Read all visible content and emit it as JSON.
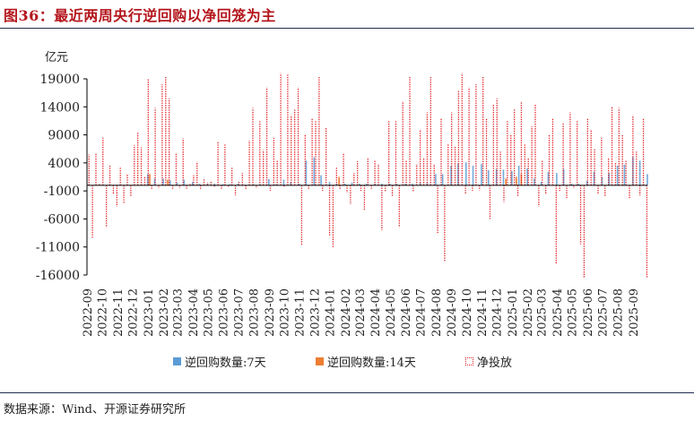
{
  "title": "图36：最近两周央行逆回购以净回笼为主",
  "source": "数据来源：Wind、开源证券研究所",
  "colors": {
    "title": "#b4161c",
    "series_7d": "#5b9bd5",
    "series_14d": "#ed7d31",
    "series_net": "#e0191f",
    "axis": "#000000"
  },
  "chart_data": {
    "type": "bar",
    "ylabel": "亿元",
    "xlabel": "",
    "ylim": [
      -16000,
      19000
    ],
    "yticks": [
      19000,
      14000,
      9000,
      4000,
      -1000,
      -6000,
      -11000,
      -16000
    ],
    "ytick_labels": [
      "19000",
      "14000",
      "9000",
      "4000",
      "-1000",
      "-6000",
      "-11000",
      "-16000"
    ],
    "categories": [
      "2022-09",
      "2022-10",
      "2022-11",
      "2022-12",
      "2023-01",
      "2023-02",
      "2023-03",
      "2023-04",
      "2023-05",
      "2023-06",
      "2023-07",
      "2023-08",
      "2023-09",
      "2023-10",
      "2023-11",
      "2023-12",
      "2024-01",
      "2024-02",
      "2024-03",
      "2024-04",
      "2024-05",
      "2024-06",
      "2024-07",
      "2024-08",
      "2024-09",
      "2024-10",
      "2024-11",
      "2024-12",
      "2025-01",
      "2025-02",
      "2025-03",
      "2025-04",
      "2025-05",
      "2025-06",
      "2025-07",
      "2025-08",
      "2025-09"
    ],
    "legend_position": "bottom",
    "grid": false,
    "series": [
      {
        "name": "逆回购数量:7天",
        "style": "bar",
        "color": "#5b9bd5",
        "x": [
          "2022-09-01",
          "2022-09-15",
          "2022-10-01",
          "2022-10-15",
          "2022-11-01",
          "2022-11-15",
          "2022-12-01",
          "2022-12-15",
          "2023-01-01",
          "2023-01-15",
          "2023-02-01",
          "2023-02-15",
          "2023-03-01",
          "2023-03-15",
          "2023-04-01",
          "2023-04-15",
          "2023-05-01",
          "2023-05-15",
          "2023-06-01",
          "2023-06-15",
          "2023-07-01",
          "2023-07-15",
          "2023-08-01",
          "2023-08-15",
          "2023-09-01",
          "2023-09-15",
          "2023-10-01",
          "2023-10-15",
          "2023-11-01",
          "2023-11-15",
          "2023-12-01",
          "2023-12-15",
          "2024-01-01",
          "2024-01-15",
          "2024-02-01",
          "2024-02-15",
          "2024-03-01",
          "2024-03-15",
          "2024-04-01",
          "2024-04-15",
          "2024-05-01",
          "2024-05-15",
          "2024-06-01",
          "2024-06-15",
          "2024-07-01",
          "2024-07-15",
          "2024-08-01",
          "2024-08-15",
          "2024-09-01",
          "2024-09-15",
          "2024-10-01",
          "2024-10-15",
          "2024-11-01",
          "2024-11-15",
          "2024-12-01",
          "2024-12-15",
          "2025-01-01",
          "2025-01-15",
          "2025-02-01",
          "2025-02-15",
          "2025-03-01",
          "2025-03-15",
          "2025-04-01",
          "2025-04-15",
          "2025-05-01",
          "2025-05-15",
          "2025-06-01",
          "2025-06-15",
          "2025-07-01",
          "2025-07-15",
          "2025-08-01",
          "2025-08-15",
          "2025-09-01",
          "2025-09-15",
          "2025-09-30"
        ],
        "values": [
          20,
          20,
          20,
          20,
          80,
          20,
          20,
          20,
          2000,
          1200,
          1200,
          900,
          500,
          1000,
          600,
          300,
          300,
          300,
          200,
          200,
          300,
          100,
          200,
          200,
          1100,
          200,
          1000,
          600,
          300,
          4400,
          5000,
          1800,
          600,
          300,
          300,
          500,
          300,
          300,
          300,
          300,
          300,
          300,
          300,
          300,
          400,
          400,
          2000,
          2000,
          3500,
          3900,
          4100,
          3500,
          3800,
          2700,
          2900,
          2800,
          2500,
          3500,
          3000,
          1200,
          600,
          2400,
          2200,
          2900,
          300,
          300,
          800,
          2400,
          1500,
          2200,
          3500,
          3700,
          5100,
          4400,
          2000
        ]
      },
      {
        "name": "逆回购数量:14天",
        "style": "bar",
        "color": "#ed7d31",
        "x": [
          "2023-01-05",
          "2023-02-10",
          "2024-01-20",
          "2024-12-20",
          "2025-01-10",
          "2025-01-20"
        ],
        "values": [
          2000,
          1000,
          1500,
          1200,
          1500,
          2000
        ]
      },
      {
        "name": "净投放",
        "style": "dotted-bar",
        "color": "#e0191f",
        "x": [
          "2022-09-05",
          "2022-09-12",
          "2022-09-19",
          "2022-09-26",
          "2022-10-03",
          "2022-10-10",
          "2022-10-17",
          "2022-10-24",
          "2022-10-31",
          "2022-11-07",
          "2022-11-14",
          "2022-11-21",
          "2022-11-28",
          "2022-12-05",
          "2022-12-12",
          "2022-12-19",
          "2022-12-26",
          "2023-01-02",
          "2023-01-09",
          "2023-01-16",
          "2023-01-23",
          "2023-01-30",
          "2023-02-06",
          "2023-02-13",
          "2023-02-20",
          "2023-02-27",
          "2023-03-06",
          "2023-03-13",
          "2023-03-20",
          "2023-03-27",
          "2023-04-03",
          "2023-04-10",
          "2023-04-17",
          "2023-04-24",
          "2023-05-01",
          "2023-05-08",
          "2023-05-15",
          "2023-05-22",
          "2023-05-29",
          "2023-06-05",
          "2023-06-12",
          "2023-06-19",
          "2023-06-26",
          "2023-07-03",
          "2023-07-10",
          "2023-07-17",
          "2023-07-24",
          "2023-07-31",
          "2023-08-07",
          "2023-08-14",
          "2023-08-21",
          "2023-08-28",
          "2023-09-04",
          "2023-09-11",
          "2023-09-18",
          "2023-09-25",
          "2023-10-02",
          "2023-10-09",
          "2023-10-16",
          "2023-10-23",
          "2023-10-30",
          "2023-11-06",
          "2023-11-13",
          "2023-11-20",
          "2023-11-27",
          "2023-12-04",
          "2023-12-11",
          "2023-12-18",
          "2023-12-25",
          "2024-01-01",
          "2024-01-08",
          "2024-01-15",
          "2024-01-22",
          "2024-01-29",
          "2024-02-05",
          "2024-02-12",
          "2024-02-19",
          "2024-02-26",
          "2024-03-04",
          "2024-03-11",
          "2024-03-18",
          "2024-03-25",
          "2024-04-01",
          "2024-04-08",
          "2024-04-15",
          "2024-04-22",
          "2024-04-29",
          "2024-05-06",
          "2024-05-13",
          "2024-05-20",
          "2024-05-27",
          "2024-06-03",
          "2024-06-10",
          "2024-06-17",
          "2024-06-24",
          "2024-07-01",
          "2024-07-08",
          "2024-07-15",
          "2024-07-22",
          "2024-07-29",
          "2024-08-05",
          "2024-08-12",
          "2024-08-19",
          "2024-08-26",
          "2024-09-02",
          "2024-09-09",
          "2024-09-16",
          "2024-09-23",
          "2024-09-30",
          "2024-10-07",
          "2024-10-14",
          "2024-10-21",
          "2024-10-28",
          "2024-11-04",
          "2024-11-11",
          "2024-11-18",
          "2024-11-25",
          "2024-12-02",
          "2024-12-09",
          "2024-12-16",
          "2024-12-23",
          "2024-12-30",
          "2025-01-06",
          "2025-01-13",
          "2025-01-20",
          "2025-01-27",
          "2025-02-03",
          "2025-02-10",
          "2025-02-17",
          "2025-02-24",
          "2025-03-03",
          "2025-03-10",
          "2025-03-17",
          "2025-03-24",
          "2025-03-31",
          "2025-04-07",
          "2025-04-14",
          "2025-04-21",
          "2025-04-28",
          "2025-05-05",
          "2025-05-12",
          "2025-05-19",
          "2025-05-26",
          "2025-06-02",
          "2025-06-09",
          "2025-06-16",
          "2025-06-23",
          "2025-06-30",
          "2025-07-07",
          "2025-07-14",
          "2025-07-21",
          "2025-07-28",
          "2025-08-04",
          "2025-08-11",
          "2025-08-18",
          "2025-08-25",
          "2025-09-01",
          "2025-09-08",
          "2025-09-15",
          "2025-09-22",
          "2025-09-29"
        ],
        "values": [
          5500,
          -9500,
          5800,
          300,
          8500,
          -7500,
          3500,
          -1500,
          -3800,
          3200,
          -3200,
          2000,
          -2000,
          7200,
          9500,
          6800,
          1500,
          19000,
          -800,
          13800,
          -500,
          18000,
          19500,
          15500,
          -800,
          5800,
          -500,
          8400,
          -600,
          300,
          1800,
          4200,
          -800,
          1200,
          500,
          700,
          -300,
          7700,
          -700,
          7400,
          -300,
          3200,
          -1800,
          600,
          2200,
          -800,
          8000,
          13800,
          -500,
          11500,
          6300,
          17500,
          -1000,
          8500,
          4500,
          20000,
          -300,
          19800,
          12500,
          13500,
          17500,
          -10800,
          9000,
          -800,
          12000,
          11500,
          19500,
          -1000,
          10200,
          -9000,
          -11000,
          3200,
          -800,
          5800,
          -1300,
          -3400,
          2200,
          4300,
          -1000,
          -4500,
          5000,
          -600,
          4500,
          3800,
          -8000,
          -1200,
          11600,
          -2000,
          11500,
          -7500,
          15000,
          4500,
          19500,
          -1200,
          3800,
          10000,
          5000,
          13000,
          19500,
          3800,
          -8500,
          12000,
          -13500,
          7500,
          13000,
          7000,
          17000,
          20000,
          -1500,
          17500,
          -1000,
          18000,
          -900,
          19500,
          12000,
          -6000,
          14500,
          15500,
          6000,
          -3000,
          11500,
          9000,
          13500,
          -2000,
          15000,
          7400,
          5000,
          10500,
          14500,
          -3800,
          4500,
          -1600,
          9000,
          12000,
          -14000,
          -1000,
          11000,
          -2500,
          13000,
          -500,
          11500,
          -10500,
          -16500,
          12000,
          10000,
          6500,
          -1500,
          8500,
          -2000,
          5000,
          14000,
          4000,
          13800,
          9000,
          4500,
          -2500,
          12500,
          6000,
          -1800,
          12000,
          -16500
        ]
      }
    ]
  }
}
